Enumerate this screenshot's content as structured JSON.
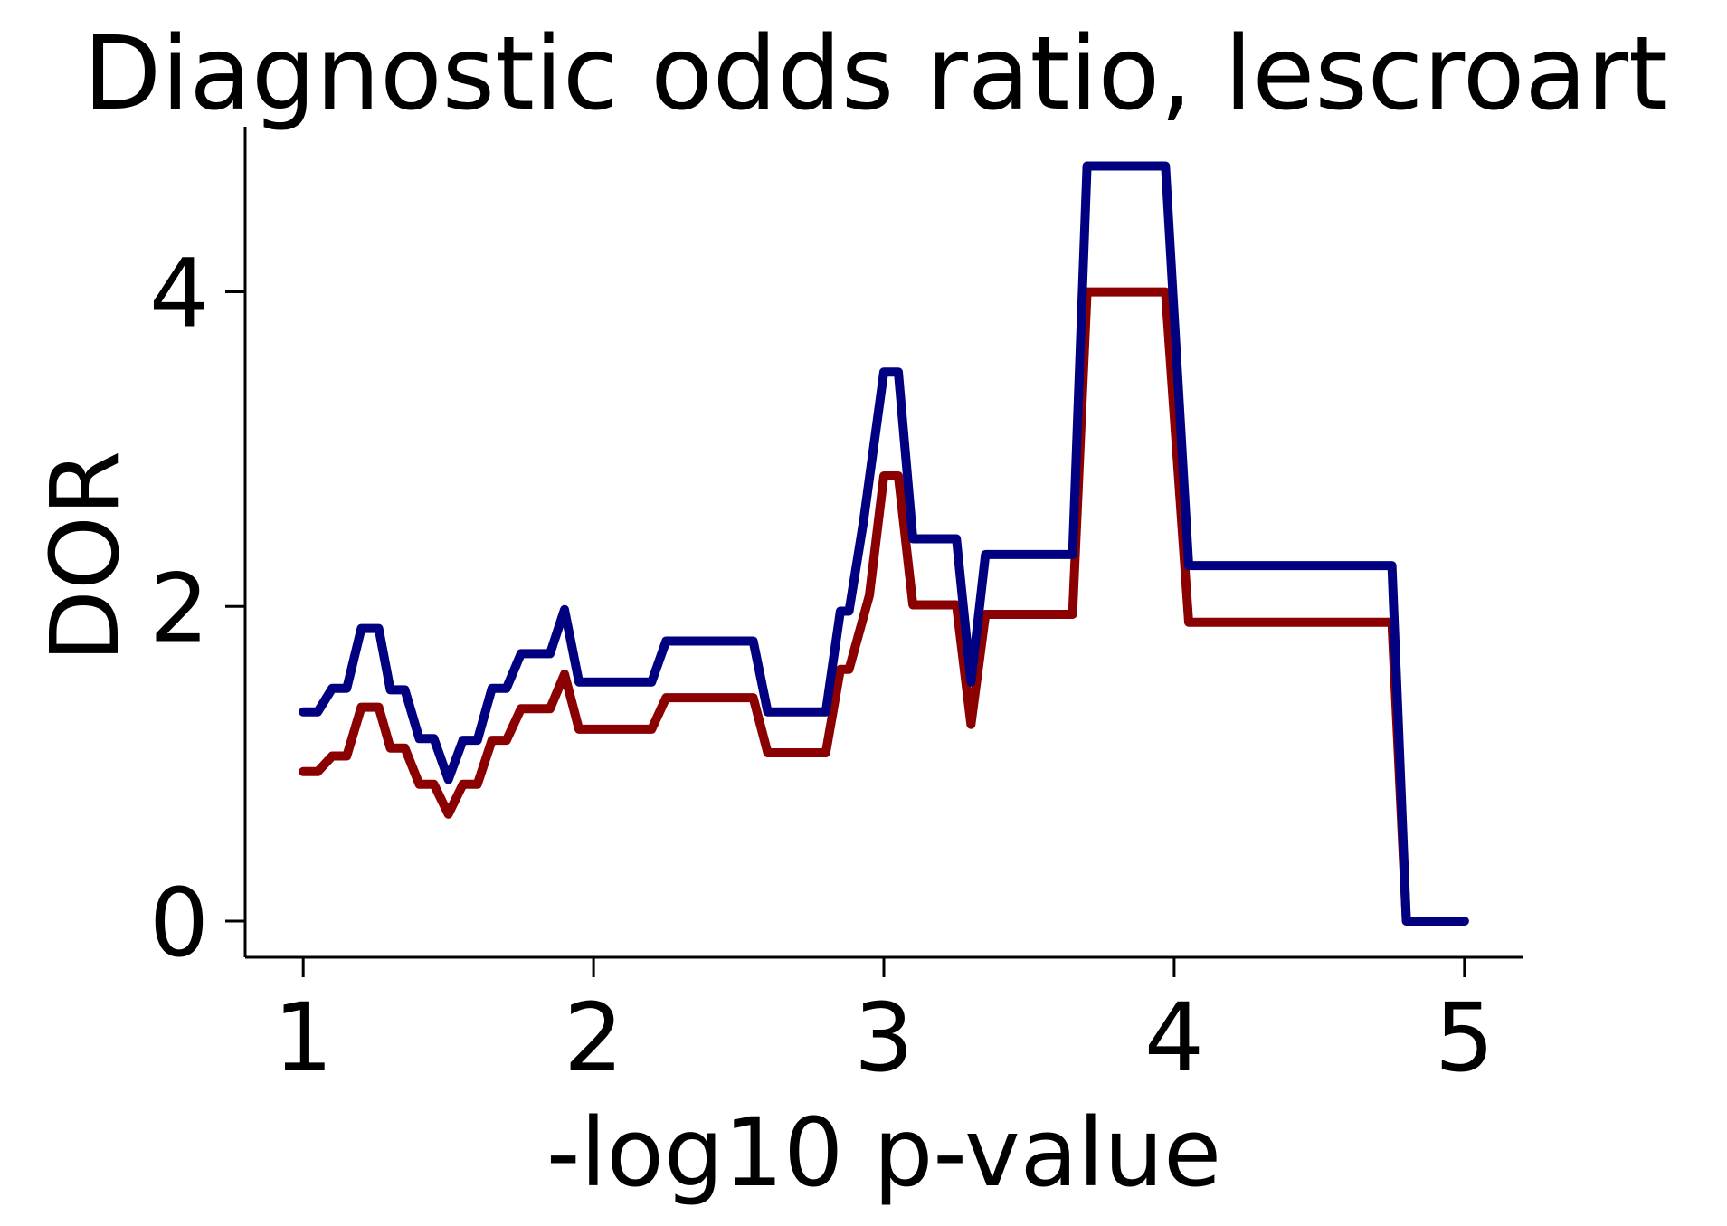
{
  "chart_data": {
    "type": "line",
    "title": "Diagnostic odds ratio, lescroart",
    "xlabel": "-log10 p-value",
    "ylabel": "DOR",
    "xlim": [
      0.8,
      5.2
    ],
    "ylim": [
      -0.23,
      5.05
    ],
    "xticks": [
      1,
      2,
      3,
      4,
      5
    ],
    "yticks": [
      0,
      2,
      4
    ],
    "grid": false,
    "legend": "none",
    "series": [
      {
        "color": "#8b0000",
        "points": [
          [
            1.0,
            0.95
          ],
          [
            1.05,
            0.95
          ],
          [
            1.1,
            1.05
          ],
          [
            1.15,
            1.05
          ],
          [
            1.2,
            1.36
          ],
          [
            1.26,
            1.36
          ],
          [
            1.3,
            1.1
          ],
          [
            1.35,
            1.1
          ],
          [
            1.4,
            0.87
          ],
          [
            1.45,
            0.87
          ],
          [
            1.5,
            0.68
          ],
          [
            1.55,
            0.87
          ],
          [
            1.6,
            0.87
          ],
          [
            1.65,
            1.15
          ],
          [
            1.7,
            1.15
          ],
          [
            1.75,
            1.35
          ],
          [
            1.85,
            1.35
          ],
          [
            1.9,
            1.57
          ],
          [
            1.95,
            1.22
          ],
          [
            2.2,
            1.22
          ],
          [
            2.25,
            1.42
          ],
          [
            2.55,
            1.42
          ],
          [
            2.6,
            1.07
          ],
          [
            2.8,
            1.07
          ],
          [
            2.85,
            1.6
          ],
          [
            2.88,
            1.6
          ],
          [
            2.95,
            2.07
          ],
          [
            3.0,
            2.83
          ],
          [
            3.05,
            2.83
          ],
          [
            3.1,
            2.01
          ],
          [
            3.25,
            2.01
          ],
          [
            3.3,
            1.25
          ],
          [
            3.35,
            1.95
          ],
          [
            3.65,
            1.95
          ],
          [
            3.7,
            4.0
          ],
          [
            3.97,
            4.0
          ],
          [
            4.05,
            1.9
          ],
          [
            4.75,
            1.9
          ],
          [
            4.8,
            0.0
          ],
          [
            5.0,
            0.0
          ]
        ]
      },
      {
        "color": "#000080",
        "points": [
          [
            1.0,
            1.33
          ],
          [
            1.05,
            1.33
          ],
          [
            1.1,
            1.48
          ],
          [
            1.15,
            1.48
          ],
          [
            1.2,
            1.86
          ],
          [
            1.26,
            1.86
          ],
          [
            1.3,
            1.47
          ],
          [
            1.35,
            1.47
          ],
          [
            1.4,
            1.16
          ],
          [
            1.45,
            1.16
          ],
          [
            1.5,
            0.9
          ],
          [
            1.55,
            1.15
          ],
          [
            1.6,
            1.15
          ],
          [
            1.65,
            1.48
          ],
          [
            1.7,
            1.48
          ],
          [
            1.75,
            1.7
          ],
          [
            1.85,
            1.7
          ],
          [
            1.9,
            1.98
          ],
          [
            1.95,
            1.52
          ],
          [
            2.2,
            1.52
          ],
          [
            2.25,
            1.78
          ],
          [
            2.55,
            1.78
          ],
          [
            2.6,
            1.33
          ],
          [
            2.8,
            1.33
          ],
          [
            2.85,
            1.97
          ],
          [
            2.88,
            1.97
          ],
          [
            2.93,
            2.54
          ],
          [
            3.0,
            3.49
          ],
          [
            3.05,
            3.49
          ],
          [
            3.1,
            2.43
          ],
          [
            3.25,
            2.43
          ],
          [
            3.3,
            1.52
          ],
          [
            3.35,
            2.33
          ],
          [
            3.65,
            2.33
          ],
          [
            3.7,
            4.8
          ],
          [
            3.97,
            4.8
          ],
          [
            4.05,
            2.26
          ],
          [
            4.75,
            2.26
          ],
          [
            4.8,
            0.0
          ],
          [
            5.0,
            0.0
          ]
        ]
      }
    ]
  }
}
